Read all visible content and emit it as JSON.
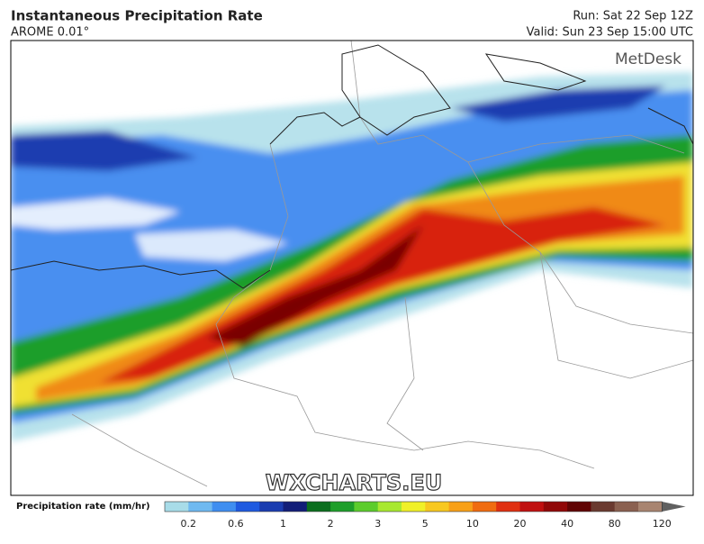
{
  "header": {
    "title": "Instantaneous Precipitation Rate",
    "model": "AROME 0.01°",
    "run": "Run: Sat 22 Sep 12Z",
    "valid": "Valid: Sun 23 Sep 15:00 UTC"
  },
  "map": {
    "logo": "MetDesk",
    "watermark": "WXCHARTS.EU"
  },
  "legend": {
    "label": "Precipitation rate (mm/hr)",
    "ticks": [
      "0.2",
      "0.6",
      "1",
      "2",
      "3",
      "5",
      "10",
      "20",
      "40",
      "80",
      "120"
    ]
  }
}
